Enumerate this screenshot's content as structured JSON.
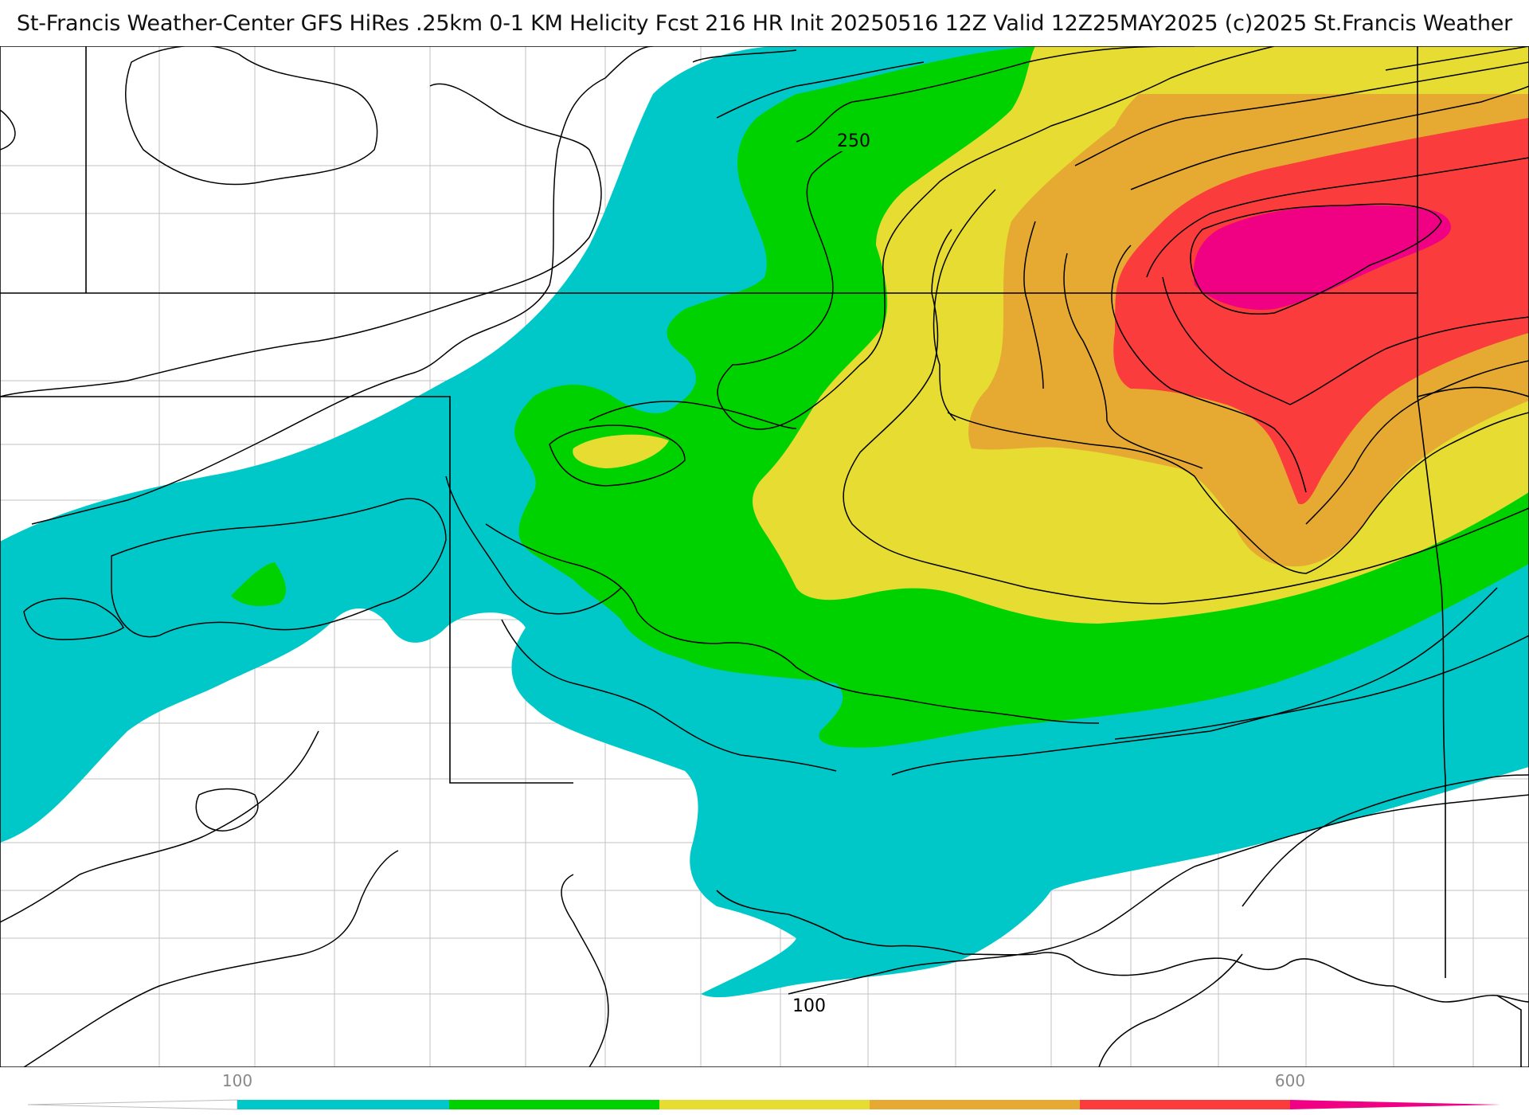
{
  "title": "St-Francis Weather-Center GFS HiRes .25km 0-1 KM Helicity Fcst 216 HR Init 20250516 12Z  Valid 12Z25MAY2025    (c)2025 St.Francis Weather",
  "contour_labels": {
    "label_250": "250",
    "label_100": "100"
  },
  "colorbar": {
    "tick_100": "100",
    "tick_600": "600",
    "colors": {
      "c100": "#00c8c8",
      "c200": "#00d200",
      "c300": "#e6dc32",
      "c400": "#e6aa32",
      "c500": "#fa3c3c",
      "c600": "#f00082"
    }
  },
  "colors": {
    "border": "#000000",
    "county": "#bbbbbb",
    "contour": "#000000"
  }
}
